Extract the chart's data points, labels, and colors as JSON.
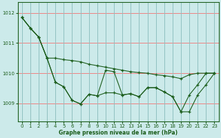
{
  "background_color": "#cceaea",
  "plot_bg_color": "#cceaea",
  "grid_color_h": "#f08080",
  "grid_color_v": "#90c0c0",
  "line_color": "#1a5c1a",
  "marker_color": "#1a5c1a",
  "xlabel": "Graphe pression niveau de la mer (hPa)",
  "ylim": [
    1008.4,
    1012.35
  ],
  "xlim": [
    -0.5,
    23.5
  ],
  "yticks": [
    1009,
    1010,
    1011,
    1012
  ],
  "xticks": [
    0,
    1,
    2,
    3,
    4,
    5,
    6,
    7,
    8,
    9,
    10,
    11,
    12,
    13,
    14,
    15,
    16,
    17,
    18,
    19,
    20,
    21,
    22,
    23
  ],
  "series": [
    [
      1011.85,
      1011.5,
      1011.2,
      1010.5,
      1010.5,
      1010.45,
      1010.42,
      1010.38,
      1010.3,
      1010.25,
      1010.2,
      1010.15,
      1010.1,
      1010.05,
      1010.02,
      1010.0,
      1009.95,
      1009.92,
      1009.88,
      1009.82,
      1009.95,
      1010.0,
      1010.0,
      1010.0
    ],
    [
      1011.85,
      1011.5,
      1011.2,
      1010.5,
      1009.7,
      1009.55,
      1009.1,
      1008.98,
      1009.3,
      1009.25,
      1009.35,
      1009.35,
      1009.28,
      1009.32,
      1009.22,
      1009.52,
      1009.52,
      1009.38,
      1009.22,
      1008.72,
      1008.72,
      1009.28,
      1009.62,
      1010.0
    ],
    [
      1011.85,
      1011.5,
      1011.2,
      1010.5,
      1009.7,
      1009.55,
      1009.1,
      1008.98,
      1009.3,
      1009.25,
      1010.1,
      1010.05,
      1009.28,
      1009.32,
      1009.22,
      1009.52,
      1009.52,
      1009.38,
      1009.22,
      1008.72,
      1009.28,
      1009.62,
      1010.0,
      1010.0
    ]
  ]
}
